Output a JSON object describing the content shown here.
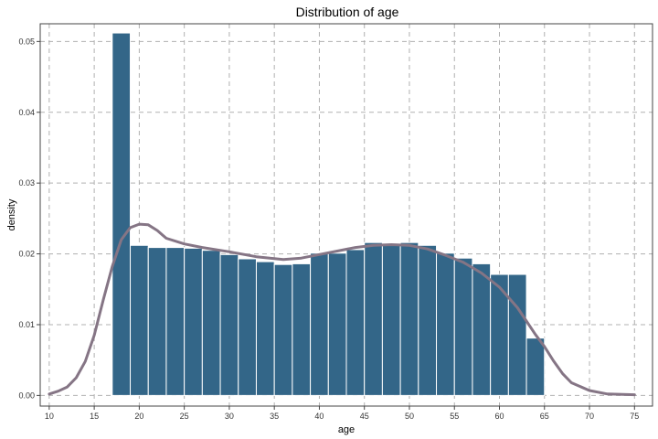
{
  "chart_data": {
    "type": "bar",
    "title": "Distribution of age",
    "xlabel": "age",
    "ylabel": "density",
    "xlim": [
      9,
      77
    ],
    "ylim": [
      -0.0015,
      0.0525
    ],
    "x_ticks": [
      10,
      15,
      20,
      25,
      30,
      35,
      40,
      45,
      50,
      55,
      60,
      65,
      70,
      75
    ],
    "y_ticks": [
      0,
      0.01,
      0.02,
      0.03,
      0.04,
      0.05
    ],
    "y_tick_labels": [
      "0.00",
      "0.01",
      "0.02",
      "0.03",
      "0.04",
      "0.05"
    ],
    "grid": true,
    "bar_color": "#336688",
    "bar_edge_color": "#ffffff",
    "density_color": "#857585",
    "histogram": {
      "bin_edges": [
        17,
        19,
        21,
        23,
        25,
        27,
        29,
        31,
        33,
        35,
        37,
        39,
        41,
        43,
        45,
        47,
        49,
        51,
        53,
        55,
        57,
        59,
        61,
        63,
        65
      ],
      "values": [
        0.0512,
        0.0212,
        0.0209,
        0.0209,
        0.0208,
        0.0205,
        0.0199,
        0.0193,
        0.0189,
        0.0185,
        0.0186,
        0.0201,
        0.0201,
        0.0206,
        0.0216,
        0.0213,
        0.0216,
        0.0212,
        0.0201,
        0.0194,
        0.0186,
        0.0171,
        0.0171,
        0.0081
      ]
    },
    "density_curve": {
      "x": [
        10,
        11,
        12,
        13,
        14,
        15,
        16,
        17,
        18,
        19,
        20,
        21,
        22,
        23,
        25,
        27,
        30,
        33,
        36,
        38,
        40,
        42,
        44,
        46,
        48,
        50,
        52,
        54,
        56,
        58,
        60,
        62,
        63,
        64,
        65,
        66,
        67,
        68,
        70,
        72,
        75
      ],
      "y": [
        0.0002,
        0.0006,
        0.0012,
        0.0025,
        0.0048,
        0.0085,
        0.0135,
        0.0182,
        0.022,
        0.0237,
        0.0242,
        0.0241,
        0.0233,
        0.0222,
        0.0214,
        0.0209,
        0.0203,
        0.0196,
        0.0192,
        0.0194,
        0.0199,
        0.0204,
        0.0209,
        0.0212,
        0.0213,
        0.0212,
        0.0207,
        0.0198,
        0.0188,
        0.0173,
        0.0153,
        0.0124,
        0.0105,
        0.0086,
        0.0069,
        0.0049,
        0.0031,
        0.0018,
        0.0007,
        0.0002,
        0.0001
      ]
    }
  }
}
